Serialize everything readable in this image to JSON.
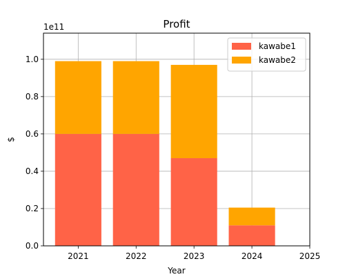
{
  "chart_data": {
    "type": "bar",
    "stacked": true,
    "title": "Profit",
    "xlabel": "Year",
    "ylabel": "$",
    "y_offset_label": "1e11",
    "y_scale": 100000000000,
    "xlim": [
      2020.4,
      2025
    ],
    "ylim": [
      0,
      1.14
    ],
    "x_ticks": [
      2021,
      2022,
      2023,
      2024,
      2025
    ],
    "y_ticks": [
      0.0,
      0.2,
      0.4,
      0.6,
      0.8,
      1.0
    ],
    "categories": [
      2021,
      2022,
      2023,
      2024
    ],
    "series": [
      {
        "name": "kawabe1",
        "color": "#ff6347",
        "values": [
          0.6,
          0.6,
          0.47,
          0.11
        ]
      },
      {
        "name": "kawabe2",
        "color": "#ffa500",
        "values": [
          0.39,
          0.39,
          0.5,
          0.095
        ]
      }
    ],
    "grid": true,
    "legend_position": "top-right"
  }
}
